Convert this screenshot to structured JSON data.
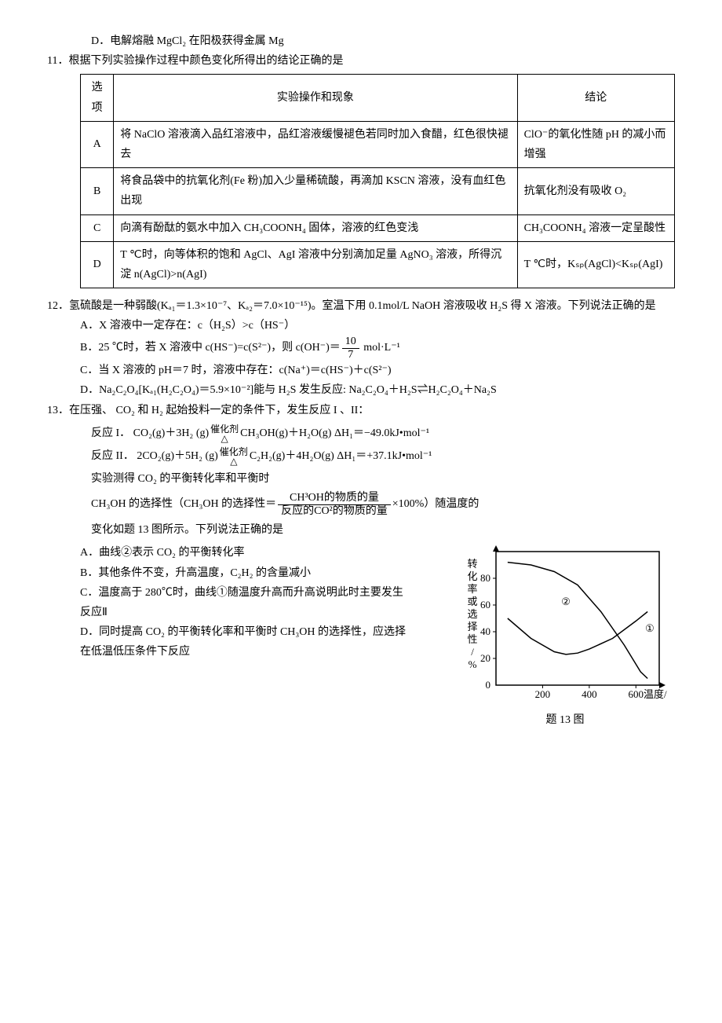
{
  "q10": {
    "option_d": "D．电解熔融 MgCl₂ 在阳极获得金属 Mg"
  },
  "q11": {
    "stem": "11．根据下列实验操作过程中颜色变化所得出的结论正确的是",
    "headers": {
      "col1": "选项",
      "col2": "实验操作和现象",
      "col3": "结论"
    },
    "rows": [
      {
        "opt": "A",
        "desc": "将 NaClO 溶液滴入品红溶液中，品红溶液缓慢褪色若同时加入食醋，红色很快褪去",
        "concl": "ClO⁻的氧化性随 pH 的减小而增强"
      },
      {
        "opt": "B",
        "desc": "将食品袋中的抗氧化剂(Fe 粉)加入少量稀硫酸，再滴加 KSCN 溶液，没有血红色出现",
        "concl": "抗氧化剂没有吸收 O₂"
      },
      {
        "opt": "C",
        "desc": "向滴有酚酞的氨水中加入 CH₃COONH₄ 固体，溶液的红色变浅",
        "concl": "CH₃COONH₄ 溶液一定呈酸性"
      },
      {
        "opt": "D",
        "desc": "T ℃时，向等体积的饱和 AgCl、AgI 溶液中分别滴加足量 AgNO₃ 溶液，所得沉淀 n(AgCl)>n(AgI)",
        "concl": "T ℃时，Kₛₚ(AgCl)<Kₛₚ(AgI)"
      }
    ]
  },
  "q12": {
    "stem": "12．氢硫酸是一种弱酸(Kₐ₁＝1.3×10⁻⁷、Kₐ₂＝7.0×10⁻¹⁵)。室温下用 0.1mol/L NaOH 溶液吸收 H₂S 得 X 溶液。下列说法正确的是",
    "opt_a": "A．X 溶液中一定存在：c（H₂S）>c（HS⁻）",
    "opt_b_pre": "B．25 ℃时，若 X 溶液中 c(HS⁻)=c(S²⁻)，则 c(OH⁻)＝",
    "opt_b_num": "10",
    "opt_b_den": "7",
    "opt_b_post": " mol·L⁻¹",
    "opt_c": "C．当 X 溶液的 pH＝7 时，溶液中存在：c(Na⁺)＝c(HS⁻)＋c(S²⁻)",
    "opt_d": "D．Na₂C₂O₄[Kₐ₁(H₂C₂O₄)＝5.9×10⁻²]能与 H₂S 发生反应: Na₂C₂O₄＋H₂S⇌H₂C₂O₄＋Na₂S"
  },
  "q13": {
    "stem": "13．在压强、 CO₂ 和 H₂ 起始投料一定的条件下，发生反应 I 、II：",
    "rxn1_label": "反应 I．",
    "rxn1_lhs": "CO₂(g)＋3H₂ (g)",
    "rxn1_rhs": "CH₃OH(g)＋H₂O(g) ΔH₁＝−49.0kJ•mol⁻¹",
    "rxn2_label": "反应 II．",
    "rxn2_lhs": "2CO₂(g)＋5H₂ (g)",
    "rxn2_rhs": "C₂H₂(g)＋4H₂O(g) ΔH₁＝+37.1kJ•mol⁻¹",
    "cond_top": "催化剂",
    "cond_bot": "△",
    "body1": "实验测得 CO₂ 的平衡转化率和平衡时",
    "body2_pre": "CH₃OH 的选择性（CH₃OH 的选择性＝",
    "body2_num": "CH³OH的物质的量",
    "body2_den": "反应的CO²的物质的量",
    "body2_post": "×100%）随温度的",
    "body3": "变化如题 13 图所示。下列说法正确的是",
    "opt_a": "A．曲线②表示 CO₂ 的平衡转化率",
    "opt_b": "B．其他条件不变，升高温度，C₂H₂ 的含量减小",
    "opt_c": "C．温度高于 280℃时，曲线①随温度升高而升高说明此时主要发生反应Ⅱ",
    "opt_d": "D．同时提高 CO₂ 的平衡转化率和平衡时 CH₃OH 的选择性，应选择在低温低压条件下反应",
    "chart": {
      "type": "line",
      "background_color": "#ffffff",
      "axis_color": "#000000",
      "line_color": "#000000",
      "line_width": 1.5,
      "xlabel": "温度/℃",
      "ylabel": "转化率或选择性/%",
      "xlim": [
        0,
        700
      ],
      "ylim": [
        0,
        100
      ],
      "xticks": [
        200,
        400,
        600
      ],
      "yticks": [
        20,
        40,
        60,
        80
      ],
      "label1": "①",
      "label2": "②",
      "series1": {
        "x": [
          50,
          150,
          250,
          300,
          350,
          400,
          500,
          600,
          650
        ],
        "y": [
          50,
          35,
          25,
          23,
          24,
          27,
          35,
          48,
          55
        ]
      },
      "series2": {
        "x": [
          50,
          150,
          250,
          350,
          450,
          550,
          620,
          650
        ],
        "y": [
          92,
          90,
          85,
          75,
          55,
          30,
          10,
          5
        ]
      },
      "caption": "题 13 图",
      "label_fontsize": 13
    }
  }
}
